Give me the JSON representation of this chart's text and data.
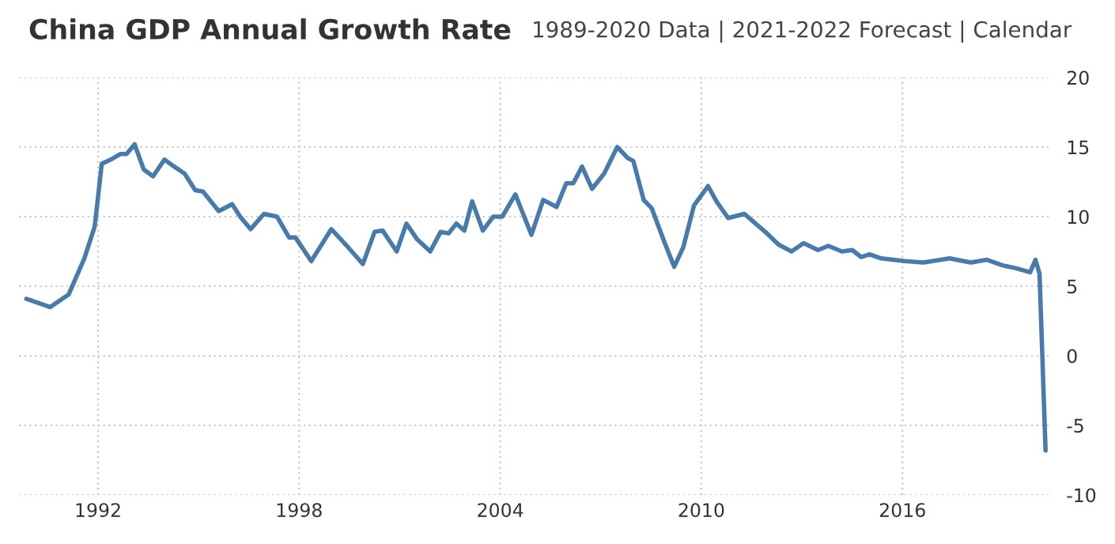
{
  "chart_data": {
    "type": "line",
    "title": "China GDP Annual Growth Rate",
    "subtitle": "1989-2020 Data | 2021-2022 Forecast | Calendar",
    "x": [
      1989.86,
      1990.57,
      1991.12,
      1991.59,
      1991.9,
      1992.11,
      1992.38,
      1992.66,
      1992.85,
      1993.09,
      1993.36,
      1993.64,
      1993.98,
      1994.27,
      1994.58,
      1994.9,
      1995.13,
      1995.6,
      1996.0,
      1996.24,
      1996.55,
      1996.95,
      1997.34,
      1997.7,
      1997.89,
      1998.36,
      1998.96,
      1999.46,
      1999.9,
      2000.25,
      2000.49,
      2000.91,
      2001.2,
      2001.51,
      2001.91,
      2002.22,
      2002.46,
      2002.69,
      2002.93,
      2003.16,
      2003.48,
      2003.79,
      2004.06,
      2004.45,
      2004.93,
      2005.28,
      2005.68,
      2005.97,
      2006.18,
      2006.44,
      2006.74,
      2007.1,
      2007.49,
      2007.81,
      2007.97,
      2008.28,
      2008.52,
      2008.91,
      2009.19,
      2009.46,
      2009.78,
      2010.2,
      2010.45,
      2010.8,
      2011.28,
      2011.91,
      2012.3,
      2012.69,
      2013.05,
      2013.48,
      2013.79,
      2014.19,
      2014.5,
      2014.77,
      2015.02,
      2015.37,
      2016.08,
      2016.63,
      2017.41,
      2018.04,
      2018.52,
      2018.99,
      2019.38,
      2019.81,
      2019.97,
      2020.09,
      2020.27
    ],
    "series": [
      {
        "color": "#4a7aa8",
        "values": [
          4.1,
          3.5,
          4.4,
          7.0,
          9.3,
          13.8,
          14.1,
          14.5,
          14.5,
          15.2,
          13.4,
          12.9,
          14.1,
          13.6,
          13.1,
          11.9,
          11.8,
          10.4,
          10.9,
          10.0,
          9.1,
          10.2,
          10.0,
          8.5,
          8.5,
          6.8,
          9.1,
          7.8,
          6.6,
          8.9,
          9.0,
          7.5,
          9.5,
          8.4,
          7.5,
          8.9,
          8.8,
          9.5,
          9.0,
          11.1,
          9.0,
          10.0,
          10.0,
          11.6,
          8.7,
          11.2,
          10.7,
          12.4,
          12.4,
          13.6,
          12.0,
          13.1,
          15.0,
          14.2,
          14.0,
          11.2,
          10.6,
          8.1,
          6.4,
          7.8,
          10.8,
          12.2,
          11.1,
          9.9,
          10.2,
          8.9,
          8.0,
          7.5,
          8.1,
          7.6,
          7.9,
          7.5,
          7.6,
          7.1,
          7.3,
          7.0,
          6.8,
          6.7,
          7.0,
          6.7,
          6.9,
          6.5,
          6.3,
          6.0,
          6.9,
          5.9,
          -6.8
        ]
      }
    ],
    "xlim": [
      1989.64,
      2020.36
    ],
    "ylim": [
      -10,
      20
    ],
    "xticks": [
      1992,
      1998,
      2004,
      2010,
      2016
    ],
    "yticks": [
      -10,
      -5,
      0,
      5,
      10,
      15,
      20
    ],
    "grid": true,
    "line_style": "solid",
    "marker": "none"
  }
}
